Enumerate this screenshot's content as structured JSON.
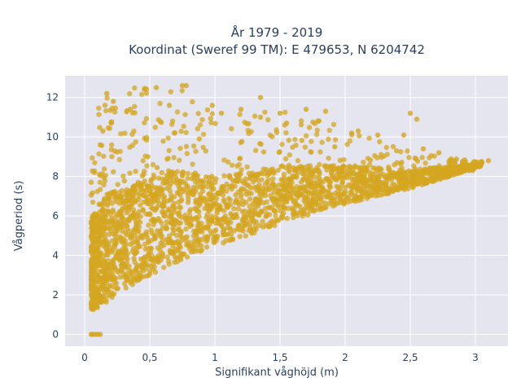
{
  "chart_data": {
    "type": "scatter",
    "title": "År 1979 - 2019",
    "subtitle": "Koordinat (Sweref 99 TM): E 479653, N 6204742",
    "xlabel": "Signifikant våghöjd (m)",
    "ylabel": "Vågperiod (s)",
    "xlim": [
      -0.15,
      3.25
    ],
    "ylim": [
      -0.6,
      13.1
    ],
    "xticks": [
      0,
      0.5,
      1,
      1.5,
      2,
      2.5,
      3
    ],
    "xtick_labels": [
      "0",
      "0,5",
      "1",
      "1,5",
      "2",
      "2,5",
      "3"
    ],
    "yticks": [
      0,
      2,
      4,
      6,
      8,
      10,
      12
    ],
    "ytick_labels": [
      "0",
      "2",
      "4",
      "6",
      "8",
      "10",
      "12"
    ],
    "grid": true,
    "colors": {
      "marker": "#d4a520",
      "plot_bg": "#e5e5ef",
      "grid": "#ffffff",
      "text": "#2a3f5f"
    },
    "density_envelope": {
      "x": [
        0.05,
        0.1,
        0.2,
        0.3,
        0.5,
        0.75,
        1.0,
        1.25,
        1.5,
        1.75,
        2.0,
        2.25,
        2.5,
        2.75,
        3.0,
        3.1
      ],
      "y_min": [
        1.2,
        1.3,
        1.8,
        2.2,
        3.0,
        3.8,
        4.5,
        5.0,
        5.6,
        6.1,
        6.6,
        7.0,
        7.4,
        7.9,
        8.4,
        8.7
      ],
      "y_max": [
        10.0,
        11.5,
        12.3,
        12.4,
        12.6,
        12.7,
        11.3,
        11.2,
        11.4,
        10.9,
        10.5,
        9.8,
        9.3,
        9.0,
        8.8,
        8.8
      ]
    },
    "series": [
      {
        "points": [
          [
            0.05,
            0.0
          ],
          [
            0.06,
            0.0
          ],
          [
            0.08,
            0.0
          ],
          [
            0.1,
            0.0
          ],
          [
            0.12,
            0.0
          ],
          [
            0.12,
            9.6
          ],
          [
            0.14,
            10.3
          ],
          [
            0.17,
            12.2
          ],
          [
            0.22,
            11.8
          ],
          [
            0.35,
            11.4
          ],
          [
            0.55,
            12.5
          ],
          [
            0.75,
            12.6
          ],
          [
            0.78,
            12.6
          ],
          [
            0.65,
            11.6
          ],
          [
            1.05,
            11.2
          ],
          [
            1.2,
            11.4
          ],
          [
            1.35,
            11.0
          ],
          [
            1.5,
            11.2
          ],
          [
            1.7,
            11.4
          ],
          [
            1.85,
            11.3
          ],
          [
            1.55,
            10.7
          ],
          [
            2.05,
            10.2
          ],
          [
            2.1,
            10.3
          ],
          [
            2.25,
            10.1
          ],
          [
            2.45,
            10.1
          ],
          [
            2.5,
            11.2
          ],
          [
            2.55,
            10.9
          ],
          [
            2.6,
            9.4
          ],
          [
            2.72,
            9.2
          ],
          [
            2.75,
            8.0
          ],
          [
            2.8,
            8.6
          ],
          [
            2.9,
            8.7
          ],
          [
            3.0,
            8.6
          ],
          [
            3.05,
            8.7
          ],
          [
            3.1,
            8.8
          ],
          [
            2.98,
            8.3
          ],
          [
            1.35,
            12.0
          ],
          [
            0.98,
            11.6
          ],
          [
            0.88,
            9.9
          ],
          [
            1.92,
            9.5
          ]
        ]
      }
    ]
  }
}
